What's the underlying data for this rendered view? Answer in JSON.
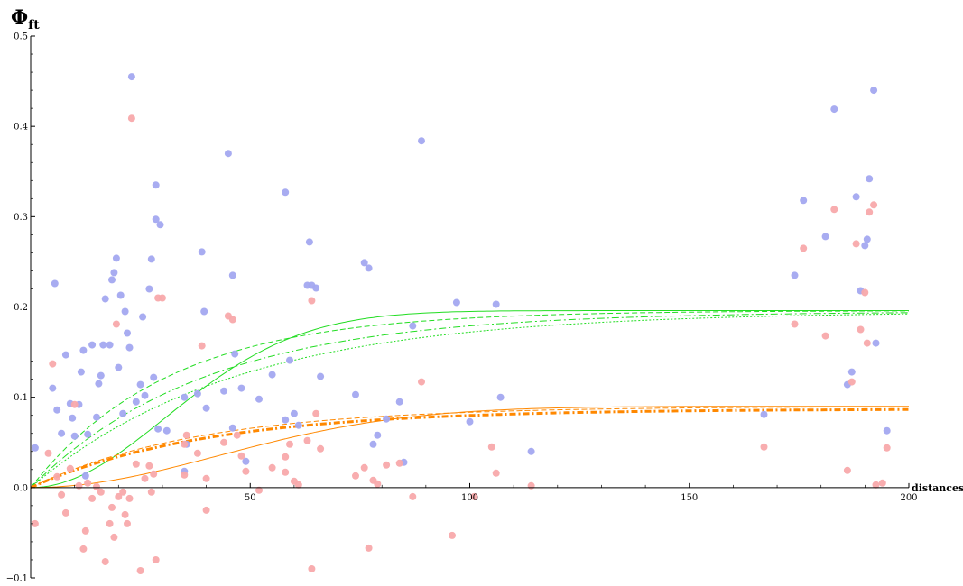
{
  "chart_data": {
    "type": "scatter",
    "title": "",
    "ylabel": "Φ",
    "ylabel_subscript": "ft",
    "xlabel": "distances",
    "xlim": [
      0,
      200
    ],
    "ylim": [
      -0.1,
      0.5
    ],
    "x_ticks": [
      50,
      100,
      150,
      200
    ],
    "y_ticks": [
      -0.1,
      0.0,
      0.1,
      0.2,
      0.3,
      0.4,
      0.5
    ],
    "y_tick_labels": [
      "−0.1",
      "0.0",
      "0.1",
      "0.2",
      "0.3",
      "0.4",
      "0.5"
    ],
    "grid": false,
    "colors": {
      "blue_points": "#a3a8f0",
      "red_points": "#f8a9ab",
      "green_curves": "#22dd22",
      "orange_curves": "#ff8800"
    },
    "scatter_series": [
      {
        "color": "blue",
        "points": [
          [
            1,
            0.044
          ],
          [
            5,
            0.11
          ],
          [
            5.5,
            0.226
          ],
          [
            6,
            0.086
          ],
          [
            7,
            0.06
          ],
          [
            8,
            0.147
          ],
          [
            9,
            0.093
          ],
          [
            9.5,
            0.077
          ],
          [
            10,
            0.057
          ],
          [
            11,
            0.092
          ],
          [
            11.5,
            0.128
          ],
          [
            12,
            0.152
          ],
          [
            12.5,
            0.013
          ],
          [
            13,
            0.059
          ],
          [
            14,
            0.158
          ],
          [
            15,
            0.078
          ],
          [
            15.5,
            0.115
          ],
          [
            16,
            0.124
          ],
          [
            16.5,
            0.158
          ],
          [
            17,
            0.209
          ],
          [
            18,
            0.158
          ],
          [
            18.5,
            0.23
          ],
          [
            19,
            0.238
          ],
          [
            19.5,
            0.254
          ],
          [
            20,
            0.133
          ],
          [
            20.5,
            0.213
          ],
          [
            21,
            0.082
          ],
          [
            21.5,
            0.195
          ],
          [
            22,
            0.171
          ],
          [
            22.5,
            0.155
          ],
          [
            23,
            0.455
          ],
          [
            24,
            0.095
          ],
          [
            25,
            0.114
          ],
          [
            25.5,
            0.189
          ],
          [
            26,
            0.102
          ],
          [
            27,
            0.22
          ],
          [
            27.5,
            0.253
          ],
          [
            28,
            0.122
          ],
          [
            28.5,
            0.335
          ],
          [
            28.5,
            0.297
          ],
          [
            29,
            0.065
          ],
          [
            29.5,
            0.291
          ],
          [
            31,
            0.063
          ],
          [
            35,
            0.1
          ],
          [
            35,
            0.018
          ],
          [
            35.5,
            0.048
          ],
          [
            38,
            0.104
          ],
          [
            39,
            0.261
          ],
          [
            39.5,
            0.195
          ],
          [
            40,
            0.088
          ],
          [
            44,
            0.107
          ],
          [
            45,
            0.37
          ],
          [
            46,
            0.235
          ],
          [
            46.5,
            0.148
          ],
          [
            46,
            0.066
          ],
          [
            48,
            0.11
          ],
          [
            49,
            0.029
          ],
          [
            52,
            0.098
          ],
          [
            55,
            0.125
          ],
          [
            58,
            0.327
          ],
          [
            58,
            0.075
          ],
          [
            59,
            0.141
          ],
          [
            60,
            0.082
          ],
          [
            61,
            0.069
          ],
          [
            63,
            0.224
          ],
          [
            63.5,
            0.272
          ],
          [
            64,
            0.224
          ],
          [
            65,
            0.221
          ],
          [
            66,
            0.123
          ],
          [
            74,
            0.103
          ],
          [
            76,
            0.249
          ],
          [
            77,
            0.243
          ],
          [
            78,
            0.048
          ],
          [
            79,
            0.058
          ],
          [
            81,
            0.076
          ],
          [
            84,
            0.095
          ],
          [
            85,
            0.028
          ],
          [
            87,
            0.179
          ],
          [
            89,
            0.384
          ],
          [
            97,
            0.205
          ],
          [
            100,
            0.073
          ],
          [
            106,
            0.203
          ],
          [
            107,
            0.1
          ],
          [
            114,
            0.04
          ],
          [
            167,
            0.081
          ],
          [
            174,
            0.235
          ],
          [
            176,
            0.318
          ],
          [
            181,
            0.278
          ],
          [
            183,
            0.419
          ],
          [
            186,
            0.114
          ],
          [
            187,
            0.128
          ],
          [
            188,
            0.322
          ],
          [
            189,
            0.218
          ],
          [
            190,
            0.268
          ],
          [
            190.5,
            0.275
          ],
          [
            191,
            0.342
          ],
          [
            192,
            0.44
          ],
          [
            192.5,
            0.16
          ],
          [
            195,
            0.063
          ]
        ]
      },
      {
        "color": "red",
        "points": [
          [
            1,
            -0.04
          ],
          [
            4,
            0.038
          ],
          [
            5,
            0.137
          ],
          [
            6,
            0.012
          ],
          [
            7,
            -0.008
          ],
          [
            8,
            -0.028
          ],
          [
            9,
            0.021
          ],
          [
            10,
            0.092
          ],
          [
            11,
            0.002
          ],
          [
            12,
            -0.068
          ],
          [
            12.5,
            -0.048
          ],
          [
            13,
            0.005
          ],
          [
            14,
            -0.012
          ],
          [
            15,
            0.001
          ],
          [
            16,
            -0.005
          ],
          [
            17,
            -0.082
          ],
          [
            18,
            -0.04
          ],
          [
            18.5,
            -0.022
          ],
          [
            19,
            -0.055
          ],
          [
            19.5,
            0.181
          ],
          [
            20,
            -0.01
          ],
          [
            21,
            -0.005
          ],
          [
            21.5,
            -0.03
          ],
          [
            22,
            -0.04
          ],
          [
            22.5,
            -0.012
          ],
          [
            23,
            0.409
          ],
          [
            24,
            0.026
          ],
          [
            25,
            -0.092
          ],
          [
            26,
            0.01
          ],
          [
            27,
            0.024
          ],
          [
            27.5,
            -0.005
          ],
          [
            28,
            0.015
          ],
          [
            28.5,
            -0.08
          ],
          [
            29,
            0.21
          ],
          [
            30,
            0.21
          ],
          [
            35,
            0.048
          ],
          [
            35,
            0.014
          ],
          [
            35.5,
            0.058
          ],
          [
            38,
            0.038
          ],
          [
            39,
            0.157
          ],
          [
            40,
            0.01
          ],
          [
            40,
            -0.025
          ],
          [
            44,
            0.05
          ],
          [
            45,
            0.19
          ],
          [
            46,
            0.186
          ],
          [
            47,
            0.058
          ],
          [
            48,
            0.035
          ],
          [
            49,
            0.018
          ],
          [
            52,
            -0.003
          ],
          [
            55,
            0.022
          ],
          [
            58,
            0.034
          ],
          [
            58,
            0.017
          ],
          [
            59,
            0.048
          ],
          [
            60,
            0.007
          ],
          [
            61,
            0.003
          ],
          [
            63,
            0.052
          ],
          [
            64,
            0.207
          ],
          [
            64,
            -0.09
          ],
          [
            65,
            0.082
          ],
          [
            66,
            0.043
          ],
          [
            74,
            0.013
          ],
          [
            76,
            0.022
          ],
          [
            77,
            -0.067
          ],
          [
            78,
            0.008
          ],
          [
            79,
            0.004
          ],
          [
            81,
            0.025
          ],
          [
            84,
            0.027
          ],
          [
            87,
            -0.01
          ],
          [
            89,
            0.117
          ],
          [
            96,
            -0.053
          ],
          [
            101,
            -0.01
          ],
          [
            105,
            0.045
          ],
          [
            106,
            0.016
          ],
          [
            114,
            0.002
          ],
          [
            167,
            0.045
          ],
          [
            174,
            0.181
          ],
          [
            176,
            0.265
          ],
          [
            181,
            0.168
          ],
          [
            183,
            0.308
          ],
          [
            186,
            0.019
          ],
          [
            187,
            0.117
          ],
          [
            188,
            0.27
          ],
          [
            189,
            0.175
          ],
          [
            190,
            0.216
          ],
          [
            190.5,
            0.16
          ],
          [
            191,
            0.305
          ],
          [
            192,
            0.313
          ],
          [
            192.5,
            0.003
          ],
          [
            194,
            0.005
          ],
          [
            195,
            0.044
          ]
        ]
      }
    ],
    "fitted_curves": [
      {
        "color": "green",
        "style": "solid",
        "sill": 0.196,
        "range": 75,
        "model": "gaussian"
      },
      {
        "color": "green",
        "style": "dashed",
        "sill": 0.196,
        "range": 95,
        "model": "exponential"
      },
      {
        "color": "green",
        "style": "dashdot",
        "sill": 0.195,
        "range": 120,
        "model": "exponential"
      },
      {
        "color": "green",
        "style": "dotted",
        "sill": 0.195,
        "range": 140,
        "model": "exponential"
      },
      {
        "color": "orange",
        "style": "solid",
        "sill": 0.09,
        "range": 105,
        "model": "gaussian"
      },
      {
        "color": "orange",
        "style": "dashed",
        "sill": 0.09,
        "range": 115,
        "model": "exponential"
      },
      {
        "color": "orange",
        "style": "thick-dashdot",
        "sill": 0.087,
        "range": 120,
        "model": "exponential"
      }
    ]
  }
}
